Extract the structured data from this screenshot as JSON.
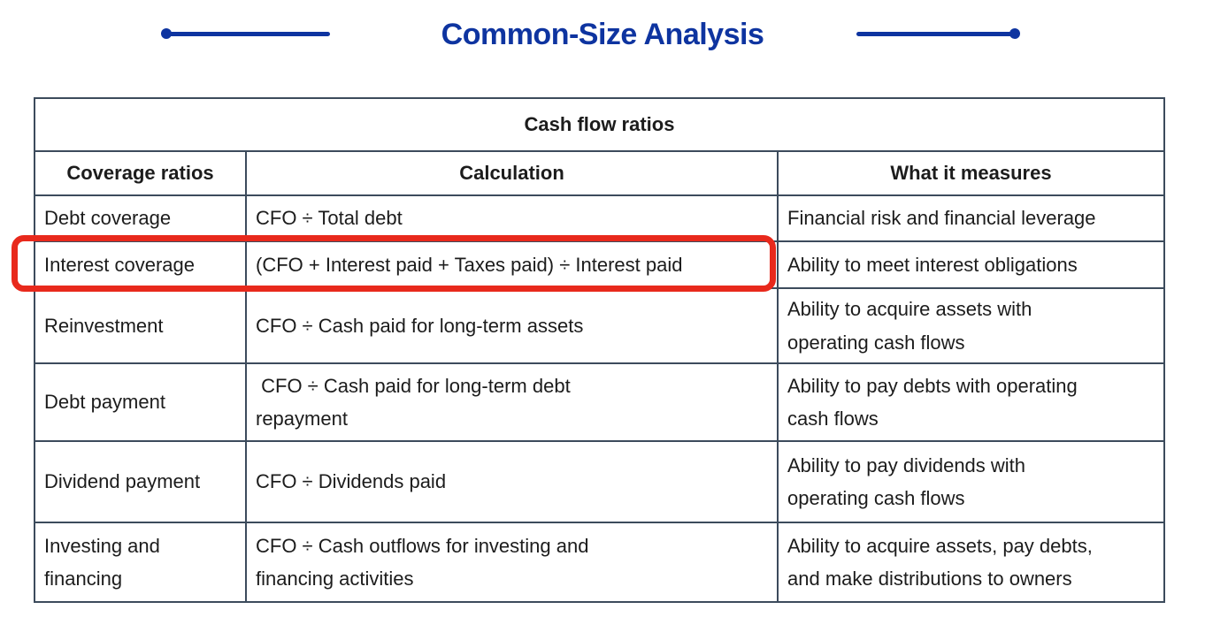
{
  "title": "Common-Size Analysis",
  "table": {
    "caption": "Cash flow ratios",
    "headers": [
      "Coverage ratios",
      "Calculation",
      "What it measures"
    ],
    "rows": [
      {
        "ratio": "Debt coverage",
        "calc": "CFO ÷ Total debt",
        "measures": "Financial risk and financial leverage"
      },
      {
        "ratio": "Interest coverage",
        "calc": "(CFO + Interest paid + Taxes paid) ÷ Interest paid",
        "measures": "Ability to meet interest obligations"
      },
      {
        "ratio": "Reinvestment",
        "calc": "CFO ÷ Cash paid for long-term assets",
        "measures": "Ability to acquire assets with\noperating cash flows"
      },
      {
        "ratio": "Debt payment",
        "calc": " CFO ÷ Cash paid for long-term debt\nrepayment",
        "measures": "Ability to pay debts with operating\ncash flows"
      },
      {
        "ratio": "Dividend payment",
        "calc": "CFO ÷ Dividends paid",
        "measures": "Ability to pay dividends with\noperating cash flows"
      },
      {
        "ratio": "Investing and\nfinancing",
        "calc": "CFO ÷ Cash outflows for investing and\nfinancing activities",
        "measures": "Ability to acquire assets, pay debts,\nand make distributions to owners"
      }
    ]
  },
  "colors": {
    "title_blue": "#0e34a0",
    "accent_blue": "#1f4e9e",
    "border": "#3c4b5c",
    "text": "#1c1c1c",
    "highlight_red": "#e8291c",
    "page_bg": "#ffffff"
  }
}
